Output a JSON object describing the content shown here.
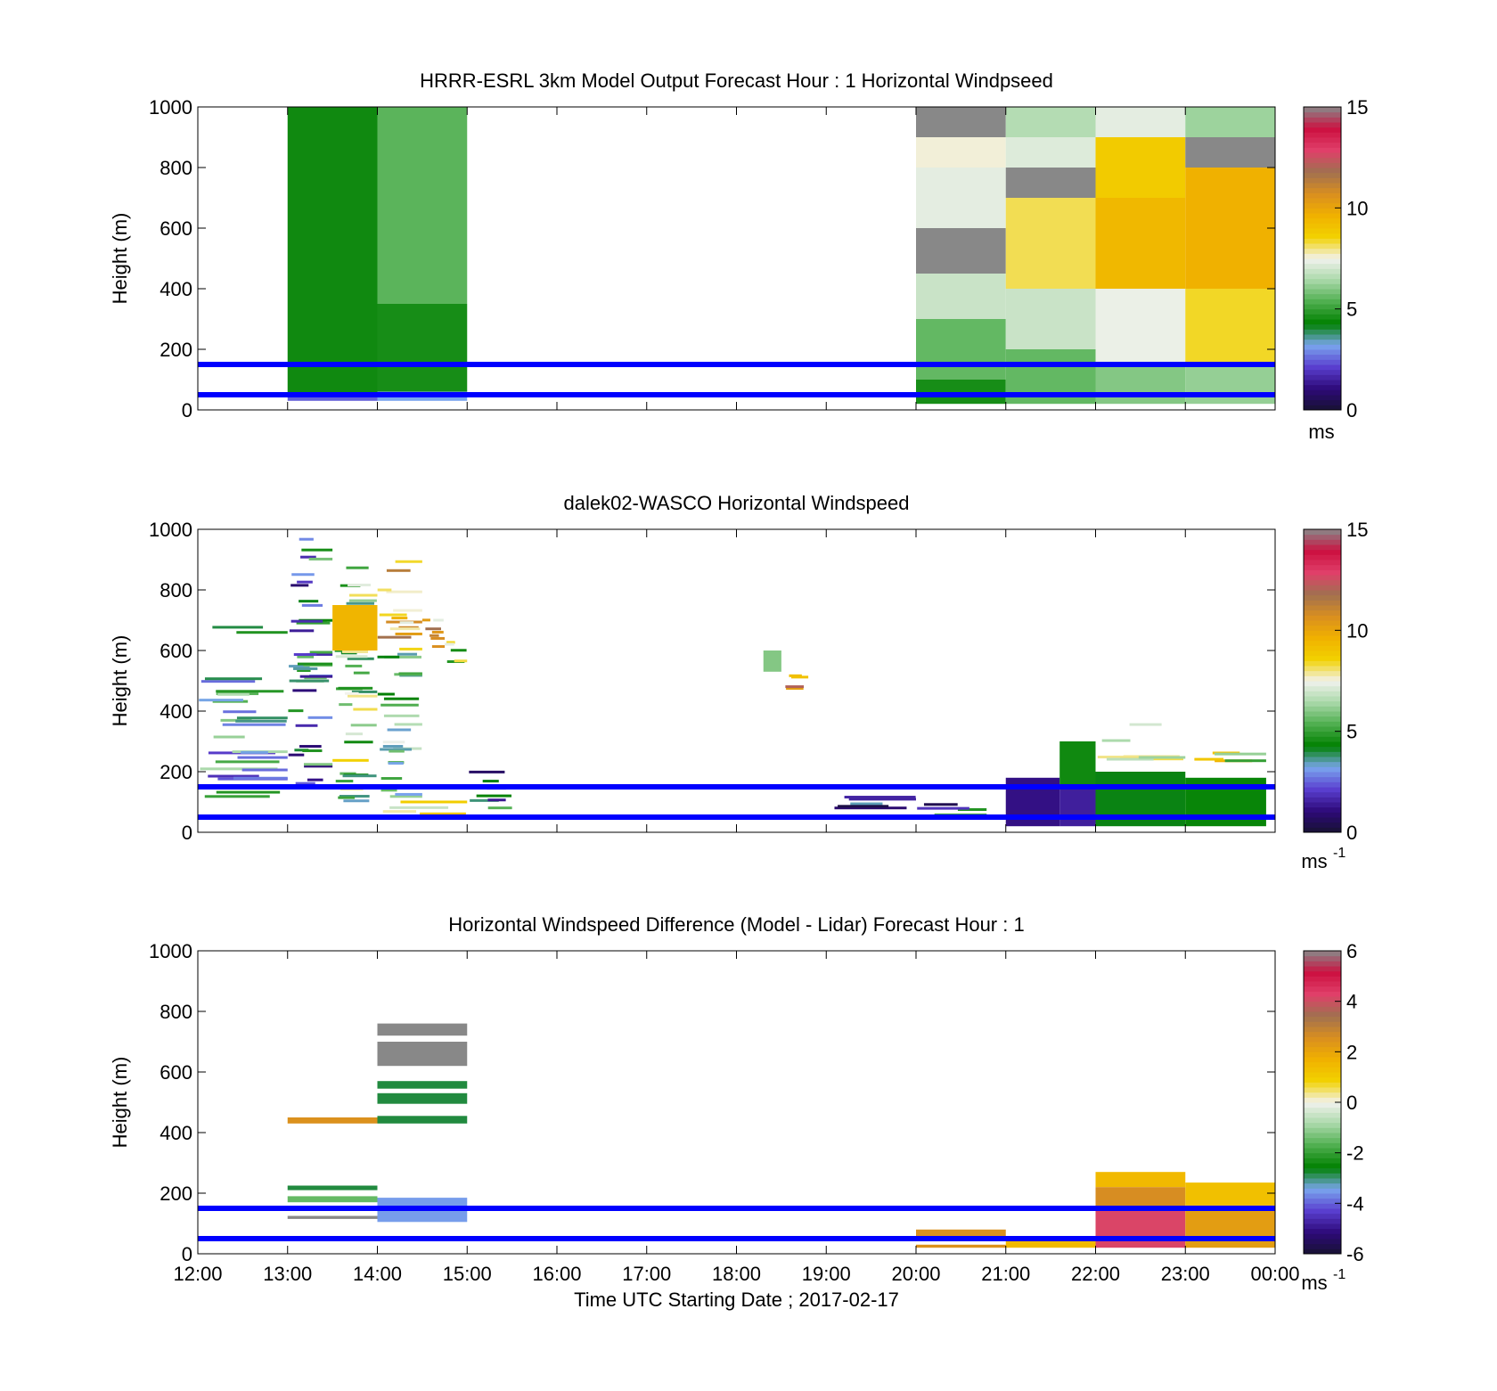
{
  "figure": {
    "xlabel": "Time UTC  Starting Date ; 2017-02-17",
    "x_ticks": [
      "12:00",
      "13:00",
      "14:00",
      "15:00",
      "16:00",
      "17:00",
      "18:00",
      "19:00",
      "20:00",
      "21:00",
      "22:00",
      "23:00",
      "00:00"
    ]
  },
  "colors": {
    "overlay_line": "#0000ff",
    "speed_colormap": [
      "#171233",
      "#2e0a7a",
      "#5a3fcf",
      "#7aa6ee",
      "#008000",
      "#4fae4f",
      "#a8d8a8",
      "#f2f2ee",
      "#f2d200",
      "#f0b000",
      "#d98e20",
      "#a07050",
      "#e0406a",
      "#cc1040",
      "#888888"
    ],
    "diff_colormap": [
      "#171233",
      "#2e0a7a",
      "#5a3fcf",
      "#7aa6ee",
      "#008000",
      "#4fae4f",
      "#a8d8a8",
      "#f2f2ee",
      "#f2d200",
      "#f0b000",
      "#d98e20",
      "#a07050",
      "#e0406a",
      "#cc1040",
      "#888888"
    ]
  },
  "chart_data": [
    {
      "type": "heatmap",
      "title": "HRRR-ESRL 3km Model Output   Forecast Hour : 1 Horizontal Windpseed",
      "ylabel": "Height (m)",
      "y_ticks": [
        "0",
        "200",
        "400",
        "600",
        "800",
        "1000"
      ],
      "ylim": [
        0,
        1000
      ],
      "xlim_hours": [
        12,
        24
      ],
      "colorbar": {
        "ticks": [
          "0",
          "5",
          "10",
          "15"
        ],
        "range": [
          0,
          15
        ],
        "unit_label": "ms",
        "unit_superscript": ""
      },
      "reference_lines_m": [
        50,
        150
      ],
      "cells": [
        {
          "t0": 13,
          "t1": 14,
          "z0": 50,
          "z1": 1000,
          "v": 4.5
        },
        {
          "t0": 13,
          "t1": 14,
          "z0": 30,
          "z1": 50,
          "v": 2.5
        },
        {
          "t0": 14,
          "t1": 15,
          "z0": 350,
          "z1": 1000,
          "v": 5.5
        },
        {
          "t0": 14,
          "t1": 15,
          "z0": 60,
          "z1": 350,
          "v": 4.6
        },
        {
          "t0": 14,
          "t1": 15,
          "z0": 30,
          "z1": 60,
          "v": 3.2
        },
        {
          "t0": 20,
          "t1": 21,
          "z0": 900,
          "z1": 1000,
          "v": 15
        },
        {
          "t0": 20,
          "t1": 21,
          "z0": 800,
          "z1": 900,
          "v": 7.6
        },
        {
          "t0": 20,
          "t1": 21,
          "z0": 600,
          "z1": 800,
          "v": 7.3
        },
        {
          "t0": 20,
          "t1": 21,
          "z0": 450,
          "z1": 600,
          "v": 15
        },
        {
          "t0": 20,
          "t1": 21,
          "z0": 300,
          "z1": 450,
          "v": 6.9
        },
        {
          "t0": 20,
          "t1": 21,
          "z0": 100,
          "z1": 300,
          "v": 5.6
        },
        {
          "t0": 20,
          "t1": 21,
          "z0": 20,
          "z1": 100,
          "v": 4.6
        },
        {
          "t0": 21,
          "t1": 22,
          "z0": 900,
          "z1": 1000,
          "v": 6.6
        },
        {
          "t0": 21,
          "t1": 22,
          "z0": 800,
          "z1": 900,
          "v": 7.2
        },
        {
          "t0": 21,
          "t1": 22,
          "z0": 700,
          "z1": 800,
          "v": 15
        },
        {
          "t0": 21,
          "t1": 22,
          "z0": 400,
          "z1": 700,
          "v": 8.2
        },
        {
          "t0": 21,
          "t1": 22,
          "z0": 200,
          "z1": 400,
          "v": 6.9
        },
        {
          "t0": 21,
          "t1": 22,
          "z0": 20,
          "z1": 200,
          "v": 5.6
        },
        {
          "t0": 22,
          "t1": 23,
          "z0": 900,
          "z1": 1000,
          "v": 7.3
        },
        {
          "t0": 22,
          "t1": 23,
          "z0": 700,
          "z1": 900,
          "v": 8.8
        },
        {
          "t0": 22,
          "t1": 23,
          "z0": 400,
          "z1": 700,
          "v": 9.4
        },
        {
          "t0": 22,
          "t1": 23,
          "z0": 150,
          "z1": 400,
          "v": 7.4
        },
        {
          "t0": 22,
          "t1": 23,
          "z0": 20,
          "z1": 150,
          "v": 6.0
        },
        {
          "t0": 23,
          "t1": 24,
          "z0": 900,
          "z1": 1000,
          "v": 6.3
        },
        {
          "t0": 23,
          "t1": 24,
          "z0": 800,
          "z1": 900,
          "v": 15
        },
        {
          "t0": 23,
          "t1": 24,
          "z0": 400,
          "z1": 800,
          "v": 9.6
        },
        {
          "t0": 23,
          "t1": 24,
          "z0": 150,
          "z1": 400,
          "v": 8.4
        },
        {
          "t0": 23,
          "t1": 24,
          "z0": 20,
          "z1": 150,
          "v": 6.2
        }
      ]
    },
    {
      "type": "heatmap",
      "title": "dalek02-WASCO  Horizontal Windspeed",
      "ylabel": "Height (m)",
      "y_ticks": [
        "0",
        "200",
        "400",
        "600",
        "800",
        "1000"
      ],
      "ylim": [
        0,
        1000
      ],
      "xlim_hours": [
        12,
        24
      ],
      "colorbar": {
        "ticks": [
          "0",
          "5",
          "10",
          "15"
        ],
        "range": [
          0,
          15
        ],
        "unit_label": "ms",
        "unit_superscript": "-1"
      },
      "reference_lines_m": [
        50,
        150
      ],
      "cells": [
        {
          "t0": 12.0,
          "t1": 13.0,
          "z0": 100,
          "z1": 700,
          "v": 4.0,
          "scatter": true
        },
        {
          "t0": 13.0,
          "t1": 13.5,
          "z0": 100,
          "z1": 1000,
          "v": 3.5,
          "scatter": true
        },
        {
          "t0": 13.5,
          "t1": 14.0,
          "z0": 100,
          "z1": 900,
          "v": 6.0,
          "scatter": true
        },
        {
          "t0": 13.5,
          "t1": 14.0,
          "z0": 600,
          "z1": 750,
          "v": 9.5
        },
        {
          "t0": 14.0,
          "t1": 14.5,
          "z0": 600,
          "z1": 900,
          "v": 9.8,
          "scatter": true
        },
        {
          "t0": 14.0,
          "t1": 14.5,
          "z0": 100,
          "z1": 600,
          "v": 5.2,
          "scatter": true
        },
        {
          "t0": 14.5,
          "t1": 14.75,
          "z0": 550,
          "z1": 700,
          "v": 9.6,
          "scatter": true
        },
        {
          "t0": 14.75,
          "t1": 15.0,
          "z0": 550,
          "z1": 650,
          "v": 6.7,
          "scatter": true
        },
        {
          "t0": 14.0,
          "t1": 15.0,
          "z0": 30,
          "z1": 150,
          "v": 9.5,
          "scatter": true
        },
        {
          "t0": 15.0,
          "t1": 15.5,
          "z0": 30,
          "z1": 200,
          "v": 3.0,
          "scatter": true
        },
        {
          "t0": 18.3,
          "t1": 18.5,
          "z0": 530,
          "z1": 600,
          "v": 6.0
        },
        {
          "t0": 18.5,
          "t1": 18.8,
          "z0": 470,
          "z1": 520,
          "v": 11.0,
          "scatter": true
        },
        {
          "t0": 19.0,
          "t1": 20.0,
          "z0": 20,
          "z1": 120,
          "v": 2.0,
          "scatter": true
        },
        {
          "t0": 20.0,
          "t1": 21.0,
          "z0": 20,
          "z1": 90,
          "v": 3.0,
          "scatter": true
        },
        {
          "t0": 21.0,
          "t1": 21.6,
          "z0": 20,
          "z1": 180,
          "v": 1.2
        },
        {
          "t0": 21.6,
          "t1": 22.0,
          "z0": 150,
          "z1": 300,
          "v": 4.5
        },
        {
          "t0": 21.6,
          "t1": 22.0,
          "z0": 20,
          "z1": 150,
          "v": 1.5
        },
        {
          "t0": 22.0,
          "t1": 23.0,
          "z0": 200,
          "z1": 360,
          "v": 8.0,
          "scatter": true
        },
        {
          "t0": 22.0,
          "t1": 23.0,
          "z0": 20,
          "z1": 200,
          "v": 4.2
        },
        {
          "t0": 23.0,
          "t1": 23.9,
          "z0": 180,
          "z1": 290,
          "v": 7.0,
          "scatter": true
        },
        {
          "t0": 23.0,
          "t1": 23.9,
          "z0": 20,
          "z1": 180,
          "v": 4.4
        }
      ]
    },
    {
      "type": "heatmap",
      "title": "Horizontal Windspeed Difference (Model - Lidar) Forecast Hour : 1",
      "ylabel": "Height (m)",
      "y_ticks": [
        "0",
        "200",
        "400",
        "600",
        "800",
        "1000"
      ],
      "ylim": [
        0,
        1000
      ],
      "xlim_hours": [
        12,
        24
      ],
      "colorbar": {
        "ticks": [
          "-6",
          "-4",
          "-2",
          "0",
          "2",
          "4",
          "6"
        ],
        "range": [
          -6,
          6
        ],
        "unit_label": "ms",
        "unit_superscript": "-1"
      },
      "reference_lines_m": [
        50,
        150
      ],
      "cells": [
        {
          "t0": 13,
          "t1": 14,
          "z0": 430,
          "z1": 450,
          "v": 2.5
        },
        {
          "t0": 13,
          "t1": 14,
          "z0": 210,
          "z1": 225,
          "v": -2.8
        },
        {
          "t0": 13,
          "t1": 14,
          "z0": 170,
          "z1": 190,
          "v": -1.5
        },
        {
          "t0": 13,
          "t1": 14,
          "z0": 115,
          "z1": 125,
          "v": 6
        },
        {
          "t0": 14,
          "t1": 15,
          "z0": 720,
          "z1": 760,
          "v": 6
        },
        {
          "t0": 14,
          "t1": 15,
          "z0": 620,
          "z1": 700,
          "v": 6
        },
        {
          "t0": 14,
          "t1": 15,
          "z0": 545,
          "z1": 570,
          "v": -2.8
        },
        {
          "t0": 14,
          "t1": 15,
          "z0": 495,
          "z1": 530,
          "v": -2.8
        },
        {
          "t0": 14,
          "t1": 15,
          "z0": 430,
          "z1": 455,
          "v": -2.8
        },
        {
          "t0": 14,
          "t1": 15,
          "z0": 105,
          "z1": 185,
          "v": -3.5
        },
        {
          "t0": 20,
          "t1": 21,
          "z0": 55,
          "z1": 80,
          "v": 2.5
        },
        {
          "t0": 20,
          "t1": 21,
          "z0": 20,
          "z1": 30,
          "v": 2.5
        },
        {
          "t0": 21,
          "t1": 22,
          "z0": 20,
          "z1": 50,
          "v": 1.5
        },
        {
          "t0": 22,
          "t1": 23,
          "z0": 220,
          "z1": 270,
          "v": 1.5
        },
        {
          "t0": 22,
          "t1": 23,
          "z0": 150,
          "z1": 220,
          "v": 2.6
        },
        {
          "t0": 22,
          "t1": 23,
          "z0": 20,
          "z1": 150,
          "v": 4.2
        },
        {
          "t0": 23,
          "t1": 24,
          "z0": 160,
          "z1": 235,
          "v": 1.3
        },
        {
          "t0": 23,
          "t1": 24,
          "z0": 20,
          "z1": 160,
          "v": 2.2
        }
      ]
    }
  ]
}
